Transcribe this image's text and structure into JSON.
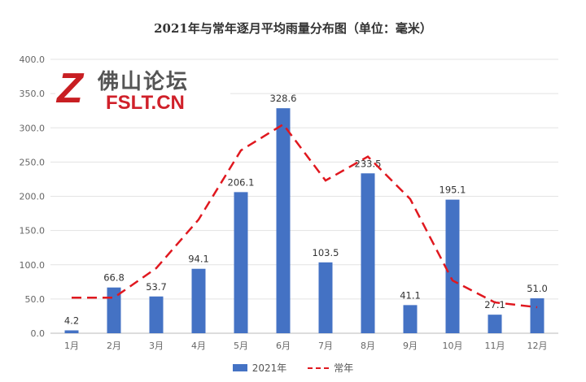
{
  "chart_data": {
    "type": "bar",
    "title": "2021年与常年逐月平均雨量分布图（单位：毫米）",
    "categories": [
      "1月",
      "2月",
      "3月",
      "4月",
      "5月",
      "6月",
      "7月",
      "8月",
      "9月",
      "10月",
      "11月",
      "12月"
    ],
    "series": [
      {
        "name": "2021年",
        "type": "bar",
        "color": "#4472C4",
        "values": [
          4.2,
          66.8,
          53.7,
          94.1,
          206.1,
          328.6,
          103.5,
          233.5,
          41.1,
          195.1,
          27.1,
          51.0
        ],
        "labels": [
          "4.2",
          "66.8",
          "53.7",
          "94.1",
          "206.1",
          "328.6",
          "103.5",
          "233.5",
          "41.1",
          "195.1",
          "27.1",
          "51.0"
        ]
      },
      {
        "name": "常年",
        "type": "line",
        "style": "dashed",
        "color": "#E0181F",
        "values": [
          52,
          52,
          95,
          166,
          267,
          305,
          223,
          258,
          196,
          77,
          45,
          38
        ]
      }
    ],
    "ylim": [
      0,
      400
    ],
    "yticks": [
      "0.0",
      "50.0",
      "100.0",
      "150.0",
      "200.0",
      "250.0",
      "300.0",
      "350.0",
      "400.0"
    ],
    "grid": true,
    "legend": "bottom"
  },
  "watermark": {
    "cn": "佛山论坛",
    "en": "FSLT.CN"
  }
}
